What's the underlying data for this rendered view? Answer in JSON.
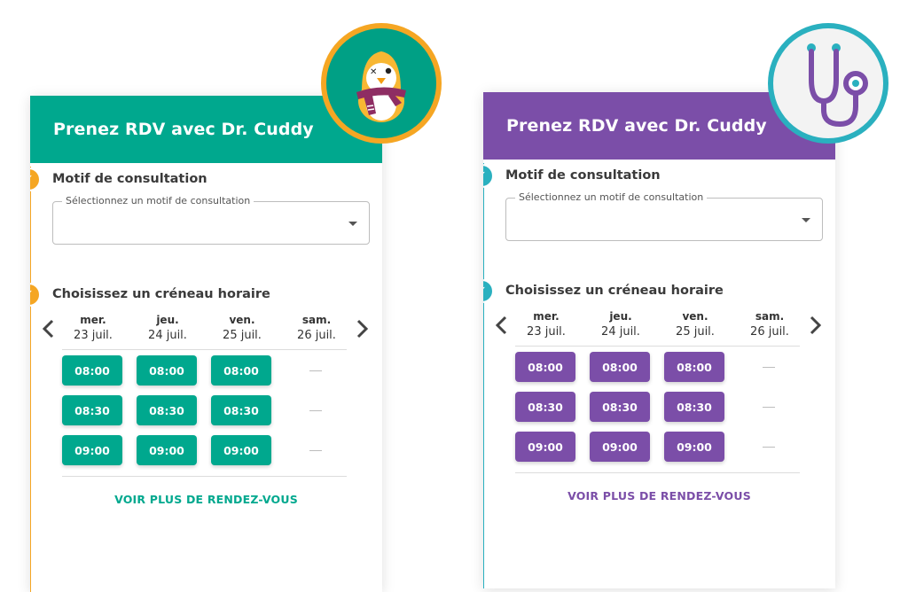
{
  "colors": {
    "teal": "#00a88e",
    "orange": "#f5a623",
    "purple": "#7b4ea8",
    "cyan": "#2ab0bf"
  },
  "widgets": [
    {
      "title": "Prenez RDV avec Dr. Cuddy",
      "theme": "teal",
      "avatar_icon": "penguin-mascot-icon",
      "step1_title": "Motif de consultation",
      "select_label": "Sélectionnez un motif de consultation",
      "step2_title": "Choisissez un créneau horaire",
      "days": [
        {
          "name": "mer.",
          "date": "23 juil."
        },
        {
          "name": "jeu.",
          "date": "24 juil."
        },
        {
          "name": "ven.",
          "date": "25 juil."
        },
        {
          "name": "sam.",
          "date": "26 juil."
        }
      ],
      "slots": [
        "08:00",
        "08:30",
        "09:00"
      ],
      "more_label": "VOIR PLUS DE RENDEZ-VOUS"
    },
    {
      "title": "Prenez RDV avec Dr. Cuddy",
      "theme": "purple",
      "avatar_icon": "stethoscope-icon",
      "step1_title": "Motif de consultation",
      "select_label": "Sélectionnez un motif de consultation",
      "step2_title": "Choisissez un créneau horaire",
      "days": [
        {
          "name": "mer.",
          "date": "23 juil."
        },
        {
          "name": "jeu.",
          "date": "24 juil."
        },
        {
          "name": "ven.",
          "date": "25 juil."
        },
        {
          "name": "sam.",
          "date": "26 juil."
        }
      ],
      "slots": [
        "08:00",
        "08:30",
        "09:00"
      ],
      "more_label": "VOIR PLUS DE RENDEZ-VOUS"
    }
  ]
}
